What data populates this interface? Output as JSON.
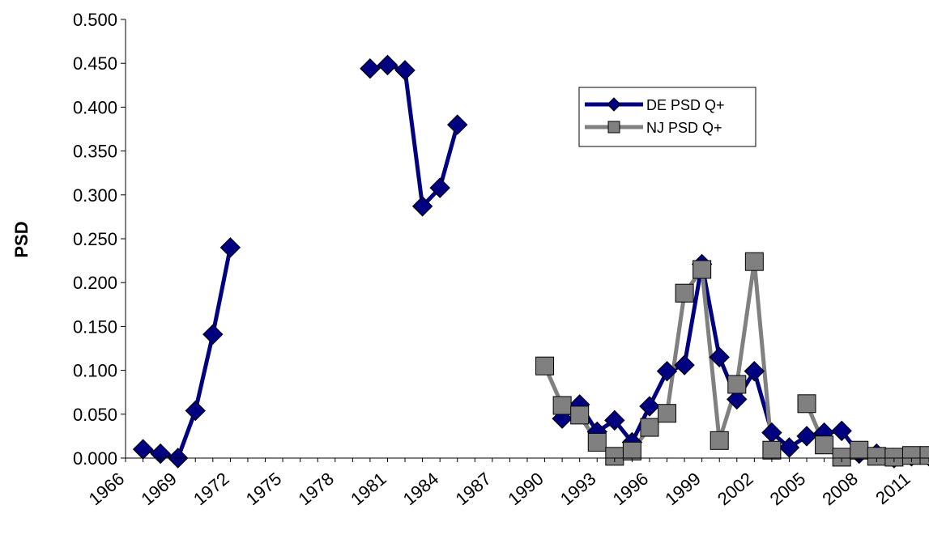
{
  "chart_data": {
    "type": "line",
    "title": "",
    "xlabel": "",
    "ylabel": "PSD",
    "ylim": [
      0,
      0.5
    ],
    "yticks": [
      "0.000",
      "0.050",
      "0.100",
      "0.150",
      "0.200",
      "0.250",
      "0.300",
      "0.350",
      "0.400",
      "0.450",
      "0.500"
    ],
    "xlim": [
      1966,
      2012
    ],
    "xticks": [
      "1966",
      "1969",
      "1972",
      "1975",
      "1978",
      "1981",
      "1984",
      "1987",
      "1990",
      "1993",
      "1996",
      "1999",
      "2002",
      "2005",
      "2008",
      "2011"
    ],
    "grid": false,
    "legend_position": "top-right",
    "series": [
      {
        "name": "DE PSD Q+",
        "color": "#000080",
        "marker": "diamond",
        "segments": [
          [
            [
              1967,
              0.01
            ],
            [
              1968,
              0.005
            ],
            [
              1969,
              0.0
            ],
            [
              1970,
              0.054
            ],
            [
              1971,
              0.141
            ],
            [
              1972,
              0.24
            ]
          ],
          [
            [
              1980,
              0.444
            ],
            [
              1981,
              0.448
            ],
            [
              1982,
              0.442
            ],
            [
              1983,
              0.287
            ],
            [
              1984,
              0.308
            ],
            [
              1985,
              0.38
            ]
          ],
          [
            [
              1991,
              0.045
            ],
            [
              1992,
              0.061
            ],
            [
              1993,
              0.03
            ],
            [
              1994,
              0.043
            ],
            [
              1995,
              0.018
            ],
            [
              1996,
              0.059
            ],
            [
              1997,
              0.099
            ],
            [
              1998,
              0.106
            ],
            [
              1999,
              0.221
            ],
            [
              2000,
              0.115
            ],
            [
              2001,
              0.067
            ],
            [
              2002,
              0.099
            ],
            [
              2003,
              0.029
            ],
            [
              2004,
              0.012
            ],
            [
              2005,
              0.025
            ],
            [
              2006,
              0.029
            ],
            [
              2007,
              0.031
            ],
            [
              2008,
              0.005
            ],
            [
              2009,
              0.005
            ],
            [
              2010,
              0.0
            ],
            [
              2011,
              0.002
            ],
            [
              2012,
              0.002
            ]
          ]
        ]
      },
      {
        "name": "NJ PSD Q+",
        "color": "#808080",
        "marker": "square",
        "segments": [
          [
            [
              1990,
              0.105
            ],
            [
              1991,
              0.06
            ],
            [
              1992,
              0.049
            ],
            [
              1993,
              0.018
            ],
            [
              1994,
              0.002
            ],
            [
              1995,
              0.008
            ],
            [
              1996,
              0.035
            ],
            [
              1997,
              0.051
            ],
            [
              1998,
              0.188
            ],
            [
              1999,
              0.215
            ],
            [
              2000,
              0.02
            ],
            [
              2001,
              0.084
            ],
            [
              2002,
              0.224
            ],
            [
              2003,
              0.009
            ],
            [
              2004,
              null
            ],
            [
              2005,
              0.062
            ],
            [
              2006,
              0.015
            ],
            [
              2007,
              0.001
            ],
            [
              2008,
              0.009
            ],
            [
              2009,
              0.002
            ],
            [
              2010,
              0.001
            ],
            [
              2011,
              0.003
            ],
            [
              2012,
              0.003
            ]
          ]
        ]
      }
    ]
  }
}
